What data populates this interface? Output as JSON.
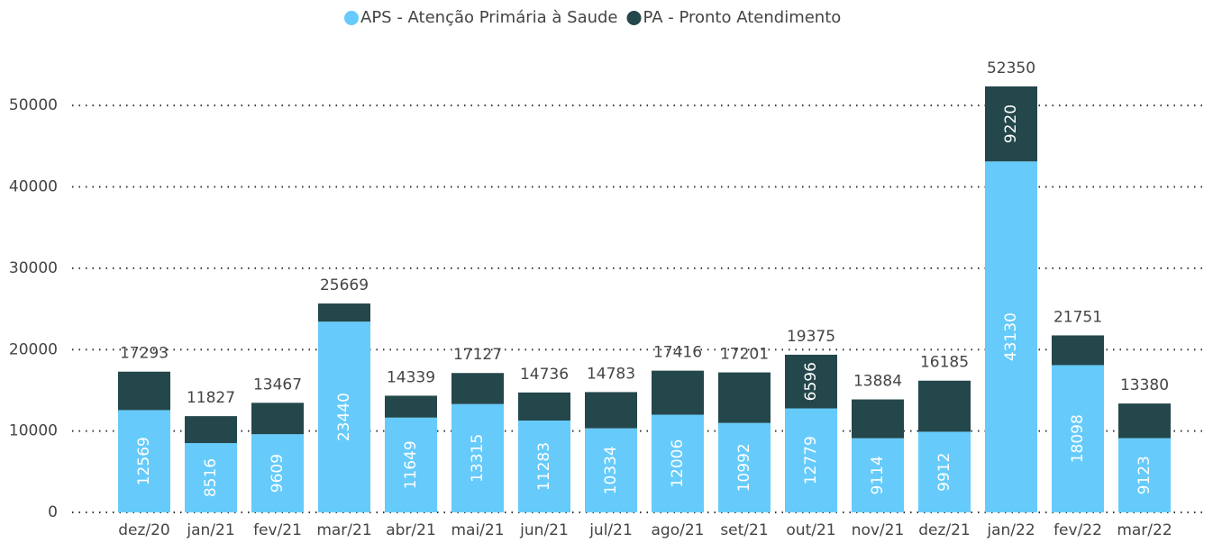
{
  "chart_data": {
    "type": "stacked_bar",
    "categories": [
      "dez/20",
      "jan/21",
      "fev/21",
      "mar/21",
      "abr/21",
      "mai/21",
      "jun/21",
      "jul/21",
      "ago/21",
      "set/21",
      "out/21",
      "nov/21",
      "dez/21",
      "jan/22",
      "fev/22",
      "mar/22"
    ],
    "series": [
      {
        "name": "APS - Atenção Primária à Saude",
        "color": "#66cbfa",
        "values": [
          12569,
          8516,
          9609,
          23440,
          11649,
          13315,
          11283,
          10334,
          12006,
          10992,
          12779,
          9114,
          9912,
          43130,
          18098,
          9123
        ]
      },
      {
        "name": "PA - Pronto Atendimento",
        "color": "#24474b",
        "values": [
          4724,
          3311,
          3858,
          2229,
          2690,
          3812,
          3453,
          4449,
          5410,
          6209,
          6596,
          4770,
          6273,
          9220,
          3653,
          4257
        ]
      }
    ],
    "totals": [
      17293,
      11827,
      13467,
      25669,
      14339,
      17127,
      14736,
      14783,
      17416,
      17201,
      19375,
      13884,
      16185,
      52350,
      21751,
      13380
    ],
    "ylim": [
      0,
      55000
    ],
    "yticks": [
      0,
      10000,
      20000,
      30000,
      40000,
      50000
    ],
    "grid": true,
    "legend": "top"
  }
}
